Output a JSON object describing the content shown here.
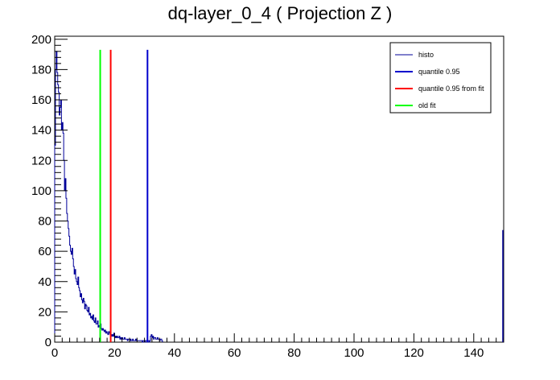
{
  "chart_data": {
    "type": "histogram",
    "title": "dq-layer_0_4 ( Projection Z )",
    "xlabel": "",
    "ylabel": "",
    "xlim": [
      0,
      150
    ],
    "ylim": [
      0,
      202
    ],
    "x_ticks": [
      0,
      20,
      40,
      60,
      80,
      100,
      120,
      140
    ],
    "y_ticks": [
      0,
      20,
      40,
      60,
      80,
      100,
      120,
      140,
      160,
      180,
      200
    ],
    "grid": false,
    "legend_position": "top-right",
    "histo": {
      "name": "histo",
      "color": "#000099",
      "bin_width": 0.25,
      "approx_values": [
        130,
        180,
        192,
        178,
        170,
        165,
        150,
        155,
        160,
        140,
        145,
        138,
        120,
        100,
        108,
        95,
        85,
        80,
        75,
        70,
        64,
        60,
        58,
        62,
        55,
        50,
        45,
        48,
        42,
        40,
        38,
        43,
        36,
        34,
        30,
        32,
        28,
        26,
        29,
        27,
        22,
        25,
        24,
        21,
        20,
        23,
        18,
        19,
        16,
        17,
        15,
        18,
        14,
        13,
        16,
        12,
        12,
        14,
        10,
        11,
        10,
        12,
        9,
        8,
        9,
        8,
        7,
        8,
        6,
        7,
        6,
        5,
        7,
        6,
        5,
        5,
        4,
        5,
        4,
        6,
        3,
        4,
        3,
        4,
        3,
        3,
        4,
        2,
        3,
        2,
        3,
        2,
        2,
        3,
        2,
        2,
        2,
        1,
        2,
        2,
        1,
        2,
        1,
        1,
        2,
        1,
        1,
        1,
        2,
        1,
        1,
        1,
        1,
        1,
        1,
        1,
        1,
        0,
        1,
        1,
        0,
        1,
        1,
        0,
        1,
        1,
        0,
        1,
        4,
        5,
        3,
        4,
        2,
        3,
        3,
        2,
        2,
        3,
        2,
        2,
        1,
        2,
        2,
        1
      ],
      "overflow_bar": {
        "x": 150,
        "value": 74
      }
    },
    "vertical_lines": [
      {
        "name": "quantile 0.95",
        "x": 31,
        "top": 193,
        "color": "#0000cc"
      },
      {
        "name": "quantile 0.95 from fit",
        "x": 18.7,
        "top": 193,
        "color": "#ff0000"
      },
      {
        "name": "old fit",
        "x": 15.2,
        "top": 193,
        "color": "#00ff00"
      }
    ],
    "legend": [
      {
        "label": "histo",
        "color": "#000099",
        "style": "thin"
      },
      {
        "label": "quantile 0.95",
        "color": "#0000cc",
        "style": "thick"
      },
      {
        "label": "quantile 0.95 from fit",
        "color": "#ff0000",
        "style": "thick"
      },
      {
        "label": "old fit",
        "color": "#00ff00",
        "style": "thick"
      }
    ]
  }
}
